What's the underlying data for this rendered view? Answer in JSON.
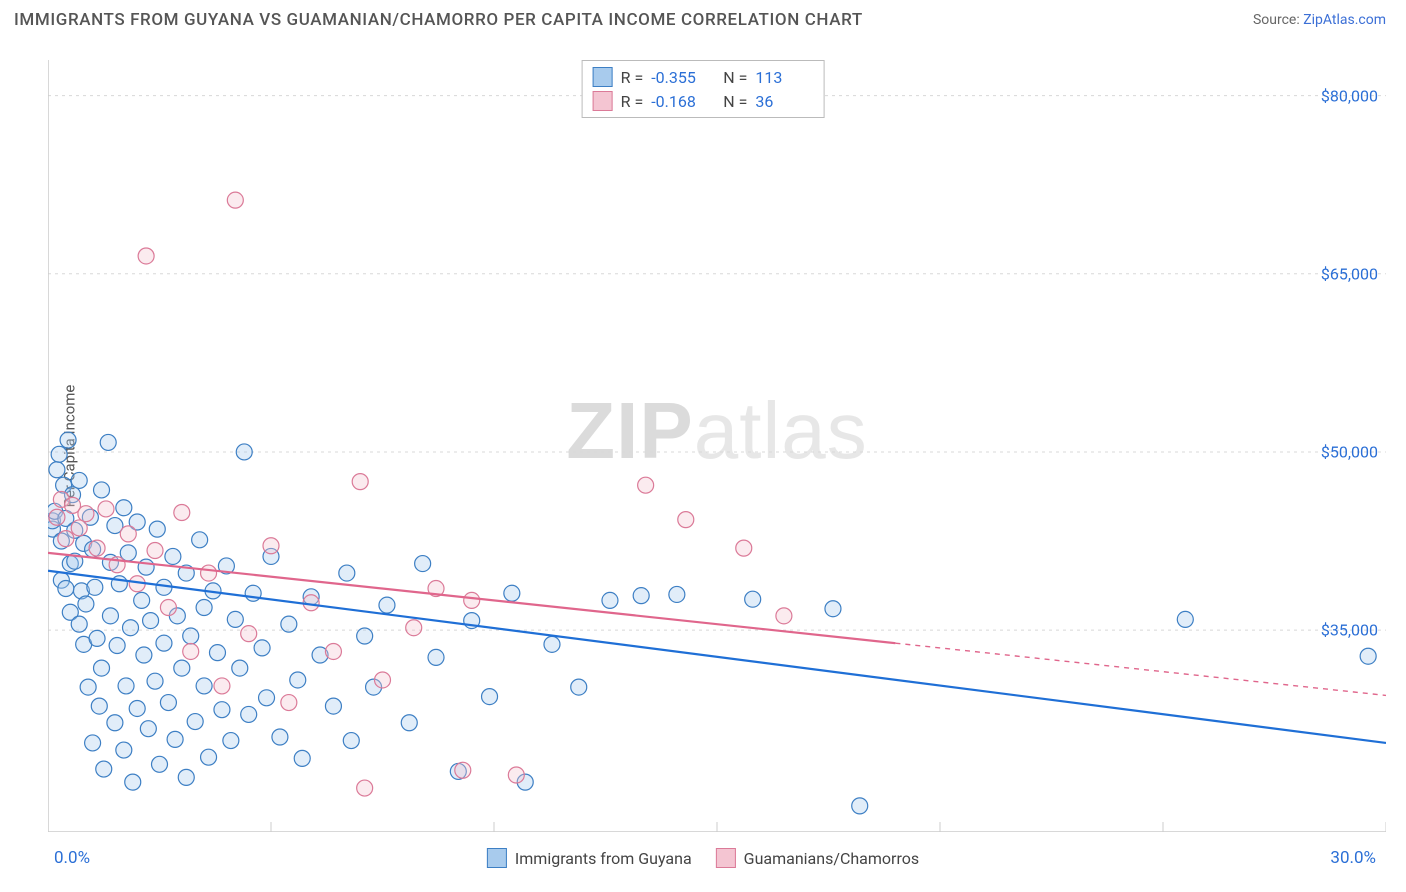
{
  "header": {
    "title": "IMMIGRANTS FROM GUYANA VS GUAMANIAN/CHAMORRO PER CAPITA INCOME CORRELATION CHART",
    "source_prefix": "Source: ",
    "source_link": "ZipAtlas.com"
  },
  "chart": {
    "type": "scatter",
    "ylabel": "Per Capita Income",
    "watermark_a": "ZIP",
    "watermark_b": "atlas",
    "background_color": "#ffffff",
    "grid_color": "#d8d8d8",
    "axis_color": "#cccccc",
    "xlim": [
      0,
      30
    ],
    "ylim": [
      18000,
      83000
    ],
    "xtick_positions": [
      0,
      5,
      10,
      15,
      20,
      25,
      30
    ],
    "xtick_labels_shown": {
      "min": "0.0%",
      "max": "30.0%"
    },
    "ytick_positions": [
      35000,
      50000,
      65000,
      80000
    ],
    "ytick_labels": [
      "$35,000",
      "$50,000",
      "$65,000",
      "$80,000"
    ],
    "marker_radius": 8,
    "marker_fill_opacity": 0.35,
    "marker_stroke_width": 1.2,
    "line_width": 2.2,
    "series": [
      {
        "id": "guyana",
        "legend_label": "Immigrants from Guyana",
        "color": "#5b9bd5",
        "fill": "#a8cbed",
        "stroke": "#3d7fc4",
        "line_color": "#1f6fd6",
        "R": "-0.355",
        "N": "113",
        "trend": {
          "x1": 0,
          "y1": 40000,
          "x2": 30,
          "y2": 25500,
          "dash_from_x": null
        },
        "points": [
          [
            0.1,
            43500
          ],
          [
            0.1,
            44200
          ],
          [
            0.15,
            45000
          ],
          [
            0.2,
            48500
          ],
          [
            0.25,
            49800
          ],
          [
            0.3,
            42500
          ],
          [
            0.3,
            39200
          ],
          [
            0.35,
            47200
          ],
          [
            0.4,
            38500
          ],
          [
            0.4,
            44400
          ],
          [
            0.45,
            51000
          ],
          [
            0.5,
            40600
          ],
          [
            0.5,
            36500
          ],
          [
            0.55,
            46400
          ],
          [
            0.6,
            43400
          ],
          [
            0.6,
            40800
          ],
          [
            0.7,
            47600
          ],
          [
            0.7,
            35500
          ],
          [
            0.75,
            38300
          ],
          [
            0.8,
            42300
          ],
          [
            0.8,
            33800
          ],
          [
            0.85,
            37200
          ],
          [
            0.9,
            30200
          ],
          [
            0.95,
            44500
          ],
          [
            1.0,
            41800
          ],
          [
            1.0,
            25500
          ],
          [
            1.05,
            38600
          ],
          [
            1.1,
            34300
          ],
          [
            1.15,
            28600
          ],
          [
            1.2,
            46800
          ],
          [
            1.2,
            31800
          ],
          [
            1.25,
            23300
          ],
          [
            1.35,
            50800
          ],
          [
            1.4,
            40700
          ],
          [
            1.4,
            36200
          ],
          [
            1.5,
            43800
          ],
          [
            1.5,
            27200
          ],
          [
            1.55,
            33700
          ],
          [
            1.6,
            38900
          ],
          [
            1.7,
            45300
          ],
          [
            1.7,
            24900
          ],
          [
            1.75,
            30300
          ],
          [
            1.8,
            41500
          ],
          [
            1.85,
            35200
          ],
          [
            1.9,
            22200
          ],
          [
            2.0,
            44100
          ],
          [
            2.0,
            28400
          ],
          [
            2.1,
            37500
          ],
          [
            2.15,
            32900
          ],
          [
            2.2,
            40300
          ],
          [
            2.25,
            26700
          ],
          [
            2.3,
            35800
          ],
          [
            2.4,
            30700
          ],
          [
            2.45,
            43500
          ],
          [
            2.5,
            23700
          ],
          [
            2.6,
            38600
          ],
          [
            2.6,
            33900
          ],
          [
            2.7,
            28900
          ],
          [
            2.8,
            41200
          ],
          [
            2.85,
            25800
          ],
          [
            2.9,
            36200
          ],
          [
            3.0,
            31800
          ],
          [
            3.1,
            39800
          ],
          [
            3.1,
            22600
          ],
          [
            3.2,
            34500
          ],
          [
            3.3,
            27300
          ],
          [
            3.4,
            42600
          ],
          [
            3.5,
            30300
          ],
          [
            3.5,
            36900
          ],
          [
            3.6,
            24300
          ],
          [
            3.7,
            38300
          ],
          [
            3.8,
            33100
          ],
          [
            3.9,
            28300
          ],
          [
            4.0,
            40400
          ],
          [
            4.1,
            25700
          ],
          [
            4.2,
            35900
          ],
          [
            4.3,
            31800
          ],
          [
            4.4,
            50000
          ],
          [
            4.5,
            27900
          ],
          [
            4.6,
            38100
          ],
          [
            4.8,
            33500
          ],
          [
            4.9,
            29300
          ],
          [
            5.0,
            41200
          ],
          [
            5.2,
            26000
          ],
          [
            5.4,
            35500
          ],
          [
            5.6,
            30800
          ],
          [
            5.7,
            24200
          ],
          [
            5.9,
            37800
          ],
          [
            6.1,
            32900
          ],
          [
            6.4,
            28600
          ],
          [
            6.7,
            39800
          ],
          [
            6.8,
            25700
          ],
          [
            7.1,
            34500
          ],
          [
            7.3,
            30200
          ],
          [
            7.6,
            37100
          ],
          [
            8.1,
            27200
          ],
          [
            8.4,
            40600
          ],
          [
            8.7,
            32700
          ],
          [
            9.2,
            23100
          ],
          [
            9.5,
            35800
          ],
          [
            9.9,
            29400
          ],
          [
            10.4,
            38100
          ],
          [
            10.7,
            22200
          ],
          [
            11.3,
            33800
          ],
          [
            11.9,
            30200
          ],
          [
            12.6,
            37500
          ],
          [
            13.3,
            37900
          ],
          [
            14.1,
            38000
          ],
          [
            15.8,
            37600
          ],
          [
            17.6,
            36800
          ],
          [
            18.2,
            20200
          ],
          [
            25.5,
            35900
          ],
          [
            29.6,
            32800
          ]
        ]
      },
      {
        "id": "chamorro",
        "legend_label": "Guamanians/Chamorros",
        "color": "#e99ab0",
        "fill": "#f4c5d2",
        "stroke": "#db7a98",
        "line_color": "#e0668c",
        "R": "-0.168",
        "N": "36",
        "trend": {
          "x1": 0,
          "y1": 41500,
          "x2": 30,
          "y2": 29500,
          "dash_from_x": 19
        },
        "points": [
          [
            0.2,
            44500
          ],
          [
            0.3,
            46000
          ],
          [
            0.4,
            42700
          ],
          [
            0.55,
            45500
          ],
          [
            0.7,
            43600
          ],
          [
            0.85,
            44800
          ],
          [
            1.1,
            41900
          ],
          [
            1.3,
            45200
          ],
          [
            1.55,
            40500
          ],
          [
            1.8,
            43100
          ],
          [
            2.0,
            38900
          ],
          [
            2.2,
            66500
          ],
          [
            2.4,
            41700
          ],
          [
            2.7,
            36900
          ],
          [
            3.0,
            44900
          ],
          [
            3.2,
            33200
          ],
          [
            3.6,
            39800
          ],
          [
            3.9,
            30300
          ],
          [
            4.2,
            71200
          ],
          [
            4.5,
            34700
          ],
          [
            5.0,
            42100
          ],
          [
            5.4,
            28900
          ],
          [
            5.9,
            37300
          ],
          [
            6.4,
            33200
          ],
          [
            7.0,
            47500
          ],
          [
            7.1,
            21700
          ],
          [
            7.5,
            30800
          ],
          [
            8.2,
            35200
          ],
          [
            8.7,
            38500
          ],
          [
            9.3,
            23200
          ],
          [
            9.5,
            37500
          ],
          [
            10.5,
            22800
          ],
          [
            13.4,
            47200
          ],
          [
            14.3,
            44300
          ],
          [
            15.6,
            41900
          ],
          [
            16.5,
            36200
          ]
        ]
      }
    ]
  },
  "stats_legend_labels": {
    "R": "R =",
    "N": "N ="
  }
}
